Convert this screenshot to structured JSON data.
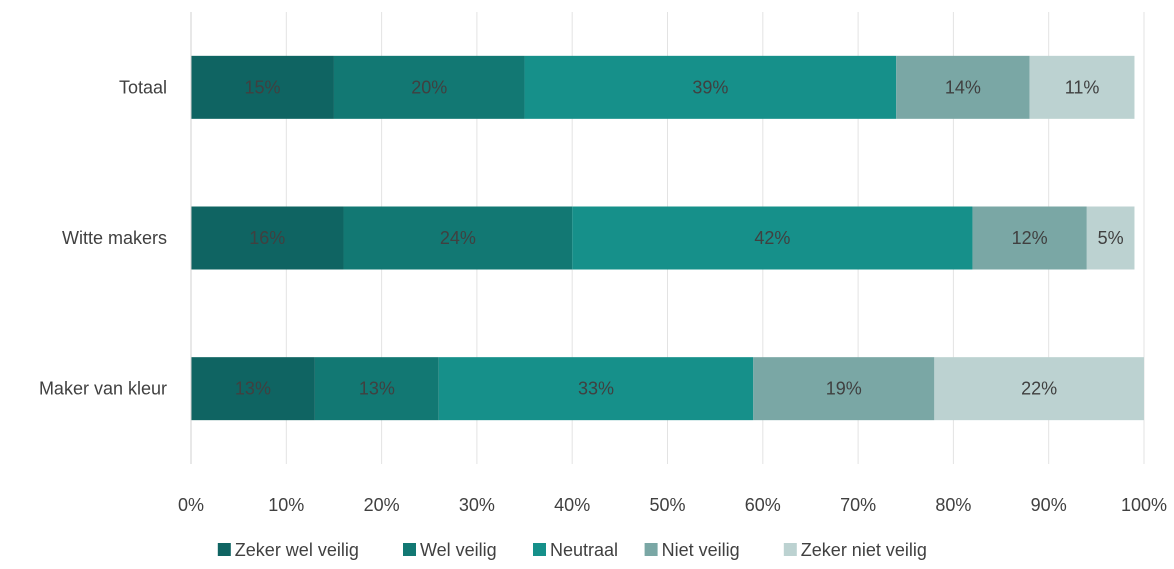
{
  "chart_data": {
    "type": "bar",
    "orientation": "horizontal",
    "stacked": "percent",
    "categories": [
      "Totaal",
      "Witte makers",
      "Maker van kleur"
    ],
    "series": [
      {
        "name": "Zeker wel veilig",
        "values": [
          15,
          16,
          13
        ],
        "labels": [
          "15%",
          "16%",
          "13%"
        ],
        "color": "#0f6462"
      },
      {
        "name": "Wel veilig",
        "values": [
          20,
          24,
          13
        ],
        "labels": [
          "20%",
          "24%",
          "13%"
        ],
        "color": "#127873"
      },
      {
        "name": "Neutraal",
        "values": [
          39,
          42,
          33
        ],
        "labels": [
          "39%",
          "42%",
          "33%"
        ],
        "color": "#16908a"
      },
      {
        "name": "Niet veilig",
        "values": [
          14,
          12,
          19
        ],
        "labels": [
          "14%",
          "12%",
          "19%"
        ],
        "color": "#7aa7a5"
      },
      {
        "name": "Zeker niet veilig",
        "values": [
          11,
          5,
          22
        ],
        "labels": [
          "11%",
          "5%",
          "22%"
        ],
        "color": "#bcd2d1"
      }
    ],
    "xlim": [
      0,
      100
    ],
    "x_ticks": [
      0,
      10,
      20,
      30,
      40,
      50,
      60,
      70,
      80,
      90,
      100
    ],
    "x_tick_labels": [
      "0%",
      "10%",
      "20%",
      "30%",
      "40%",
      "50%",
      "60%",
      "70%",
      "80%",
      "90%",
      "100%"
    ],
    "grid": true,
    "legend_position": "bottom",
    "title": "",
    "xlabel": "",
    "ylabel": ""
  }
}
